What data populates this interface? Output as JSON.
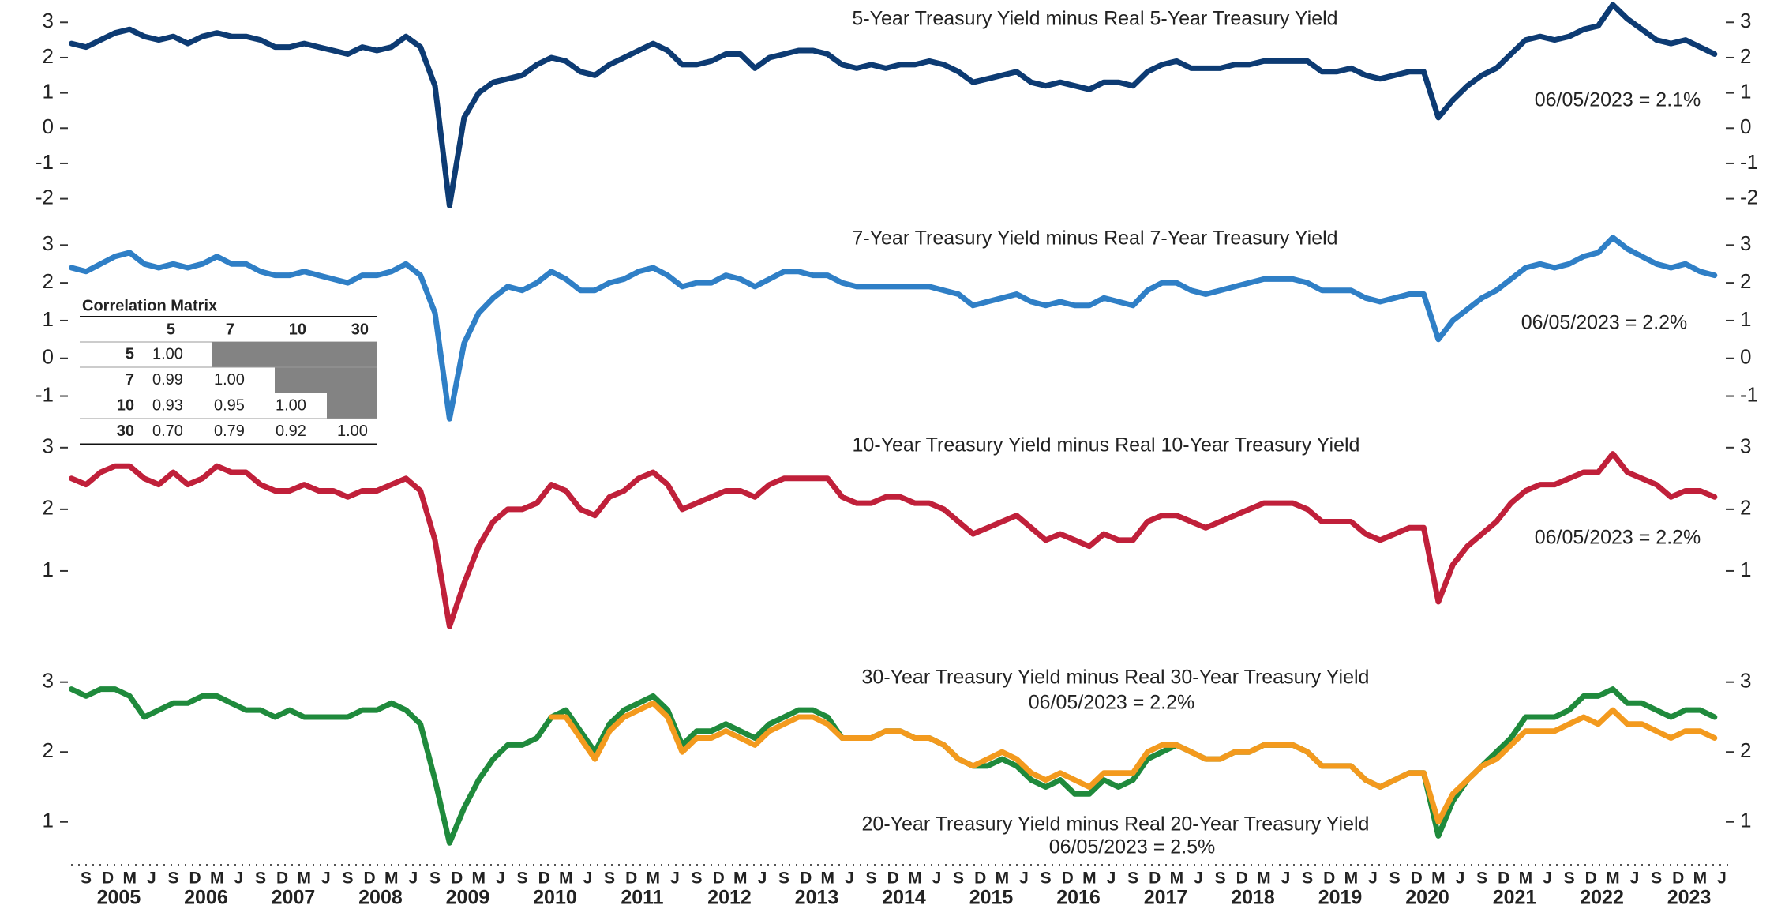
{
  "chart_data": [
    {
      "type": "line",
      "ylim": [
        -2.3,
        3.6
      ],
      "yticks": [
        -2,
        -1,
        0,
        1,
        2,
        3
      ],
      "series": [
        {
          "name": "5-Year Treasury Yield minus Real 5-Year Treasury Yield",
          "note": "06/05/2023 = 2.1%",
          "color": "#0d3b73",
          "values": [
            2.4,
            2.3,
            2.5,
            2.7,
            2.8,
            2.6,
            2.5,
            2.6,
            2.4,
            2.6,
            2.7,
            2.6,
            2.6,
            2.5,
            2.3,
            2.3,
            2.4,
            2.3,
            2.2,
            2.1,
            2.3,
            2.2,
            2.3,
            2.6,
            2.3,
            1.2,
            -2.2,
            0.3,
            1.0,
            1.3,
            1.4,
            1.5,
            1.8,
            2.0,
            1.9,
            1.6,
            1.5,
            1.8,
            2.0,
            2.2,
            2.4,
            2.2,
            1.8,
            1.8,
            1.9,
            2.1,
            2.1,
            1.7,
            2.0,
            2.1,
            2.2,
            2.2,
            2.1,
            1.8,
            1.7,
            1.8,
            1.7,
            1.8,
            1.8,
            1.9,
            1.8,
            1.6,
            1.3,
            1.4,
            1.5,
            1.6,
            1.3,
            1.2,
            1.3,
            1.2,
            1.1,
            1.3,
            1.3,
            1.2,
            1.6,
            1.8,
            1.9,
            1.7,
            1.7,
            1.7,
            1.8,
            1.8,
            1.9,
            1.9,
            1.9,
            1.9,
            1.6,
            1.6,
            1.7,
            1.5,
            1.4,
            1.5,
            1.6,
            1.6,
            0.3,
            0.8,
            1.2,
            1.5,
            1.7,
            2.1,
            2.5,
            2.6,
            2.5,
            2.6,
            2.8,
            2.9,
            3.5,
            3.1,
            2.8,
            2.5,
            2.4,
            2.5,
            2.3,
            2.1
          ]
        }
      ]
    },
    {
      "type": "line",
      "ylim": [
        -1.7,
        3.3
      ],
      "yticks": [
        -1,
        0,
        1,
        2,
        3
      ],
      "series": [
        {
          "name": "7-Year Treasury Yield minus Real 7-Year Treasury Yield",
          "note": "06/05/2023 = 2.2%",
          "note_color": "#222",
          "color": "#2f7fc6",
          "values": [
            2.4,
            2.3,
            2.5,
            2.7,
            2.8,
            2.5,
            2.4,
            2.5,
            2.4,
            2.5,
            2.7,
            2.5,
            2.5,
            2.3,
            2.2,
            2.2,
            2.3,
            2.2,
            2.1,
            2.0,
            2.2,
            2.2,
            2.3,
            2.5,
            2.2,
            1.2,
            -1.6,
            0.4,
            1.2,
            1.6,
            1.9,
            1.8,
            2.0,
            2.3,
            2.1,
            1.8,
            1.8,
            2.0,
            2.1,
            2.3,
            2.4,
            2.2,
            1.9,
            2.0,
            2.0,
            2.2,
            2.1,
            1.9,
            2.1,
            2.3,
            2.3,
            2.2,
            2.2,
            2.0,
            1.9,
            1.9,
            1.9,
            1.9,
            1.9,
            1.9,
            1.8,
            1.7,
            1.4,
            1.5,
            1.6,
            1.7,
            1.5,
            1.4,
            1.5,
            1.4,
            1.4,
            1.6,
            1.5,
            1.4,
            1.8,
            2.0,
            2.0,
            1.8,
            1.7,
            1.8,
            1.9,
            2.0,
            2.1,
            2.1,
            2.1,
            2.0,
            1.8,
            1.8,
            1.8,
            1.6,
            1.5,
            1.6,
            1.7,
            1.7,
            0.5,
            1.0,
            1.3,
            1.6,
            1.8,
            2.1,
            2.4,
            2.5,
            2.4,
            2.5,
            2.7,
            2.8,
            3.2,
            2.9,
            2.7,
            2.5,
            2.4,
            2.5,
            2.3,
            2.2
          ]
        }
      ]
    },
    {
      "type": "line",
      "ylim": [
        0,
        3.1
      ],
      "yticks": [
        1,
        2,
        3
      ],
      "series": [
        {
          "name": "10-Year Treasury Yield minus Real 10-Year Treasury Yield",
          "note": "06/05/2023 = 2.2%",
          "color": "#c0203a",
          "values": [
            2.5,
            2.4,
            2.6,
            2.7,
            2.7,
            2.5,
            2.4,
            2.6,
            2.4,
            2.5,
            2.7,
            2.6,
            2.6,
            2.4,
            2.3,
            2.3,
            2.4,
            2.3,
            2.3,
            2.2,
            2.3,
            2.3,
            2.4,
            2.5,
            2.3,
            1.5,
            0.1,
            0.8,
            1.4,
            1.8,
            2.0,
            2.0,
            2.1,
            2.4,
            2.3,
            2.0,
            1.9,
            2.2,
            2.3,
            2.5,
            2.6,
            2.4,
            2.0,
            2.1,
            2.2,
            2.3,
            2.3,
            2.2,
            2.4,
            2.5,
            2.5,
            2.5,
            2.5,
            2.2,
            2.1,
            2.1,
            2.2,
            2.2,
            2.1,
            2.1,
            2.0,
            1.8,
            1.6,
            1.7,
            1.8,
            1.9,
            1.7,
            1.5,
            1.6,
            1.5,
            1.4,
            1.6,
            1.5,
            1.5,
            1.8,
            1.9,
            1.9,
            1.8,
            1.7,
            1.8,
            1.9,
            2.0,
            2.1,
            2.1,
            2.1,
            2.0,
            1.8,
            1.8,
            1.8,
            1.6,
            1.5,
            1.6,
            1.7,
            1.7,
            0.5,
            1.1,
            1.4,
            1.6,
            1.8,
            2.1,
            2.3,
            2.4,
            2.4,
            2.5,
            2.6,
            2.6,
            2.9,
            2.6,
            2.5,
            2.4,
            2.2,
            2.3,
            2.3,
            2.2
          ]
        }
      ]
    },
    {
      "type": "line",
      "ylim": [
        0.5,
        3.2
      ],
      "yticks": [
        1,
        2,
        3
      ],
      "series": [
        {
          "name": "20-Year Treasury Yield minus Real 20-Year Treasury Yield",
          "note": "06/05/2023 = 2.5%",
          "color": "#1f8a3c",
          "values": [
            2.9,
            2.8,
            2.9,
            2.9,
            2.8,
            2.5,
            2.6,
            2.7,
            2.7,
            2.8,
            2.8,
            2.7,
            2.6,
            2.6,
            2.5,
            2.6,
            2.5,
            2.5,
            2.5,
            2.5,
            2.6,
            2.6,
            2.7,
            2.6,
            2.4,
            1.6,
            0.7,
            1.2,
            1.6,
            1.9,
            2.1,
            2.1,
            2.2,
            2.5,
            2.6,
            2.3,
            2.0,
            2.4,
            2.6,
            2.7,
            2.8,
            2.6,
            2.1,
            2.3,
            2.3,
            2.4,
            2.3,
            2.2,
            2.4,
            2.5,
            2.6,
            2.6,
            2.5,
            2.2,
            2.2,
            2.2,
            2.3,
            2.3,
            2.2,
            2.2,
            2.1,
            1.9,
            1.8,
            1.8,
            1.9,
            1.8,
            1.6,
            1.5,
            1.6,
            1.4,
            1.4,
            1.6,
            1.5,
            1.6,
            1.9,
            2.0,
            2.1,
            2.0,
            1.9,
            1.9,
            2.0,
            2.0,
            2.1,
            2.1,
            2.1,
            2.0,
            1.8,
            1.8,
            1.8,
            1.6,
            1.5,
            1.6,
            1.7,
            1.7,
            0.8,
            1.3,
            1.6,
            1.8,
            2.0,
            2.2,
            2.5,
            2.5,
            2.5,
            2.6,
            2.8,
            2.8,
            2.9,
            2.7,
            2.7,
            2.6,
            2.5,
            2.6,
            2.6,
            2.5
          ]
        },
        {
          "name": "30-Year Treasury Yield minus Real 30-Year Treasury Yield",
          "note": "06/05/2023 = 2.2%",
          "color": "#f39a1e",
          "values": [
            null,
            null,
            null,
            null,
            null,
            null,
            null,
            null,
            null,
            null,
            null,
            null,
            null,
            null,
            null,
            null,
            null,
            null,
            null,
            null,
            null,
            null,
            null,
            null,
            null,
            null,
            null,
            null,
            null,
            null,
            null,
            null,
            null,
            2.5,
            2.5,
            2.2,
            1.9,
            2.3,
            2.5,
            2.6,
            2.7,
            2.5,
            2.0,
            2.2,
            2.2,
            2.3,
            2.2,
            2.1,
            2.3,
            2.4,
            2.5,
            2.5,
            2.4,
            2.2,
            2.2,
            2.2,
            2.3,
            2.3,
            2.2,
            2.2,
            2.1,
            1.9,
            1.8,
            1.9,
            2.0,
            1.9,
            1.7,
            1.6,
            1.7,
            1.6,
            1.5,
            1.7,
            1.7,
            1.7,
            2.0,
            2.1,
            2.1,
            2.0,
            1.9,
            1.9,
            2.0,
            2.0,
            2.1,
            2.1,
            2.1,
            2.0,
            1.8,
            1.8,
            1.8,
            1.6,
            1.5,
            1.6,
            1.7,
            1.7,
            1.0,
            1.4,
            1.6,
            1.8,
            1.9,
            2.1,
            2.3,
            2.3,
            2.3,
            2.4,
            2.5,
            2.4,
            2.6,
            2.4,
            2.4,
            2.3,
            2.2,
            2.3,
            2.3,
            2.2
          ]
        }
      ],
      "xticks": [
        "S",
        "D",
        "M",
        "J",
        "S",
        "D",
        "M",
        "J",
        "S",
        "D",
        "M",
        "J",
        "S",
        "D",
        "M",
        "J",
        "S",
        "D",
        "M",
        "J",
        "S",
        "D",
        "M",
        "J",
        "S",
        "D",
        "M",
        "J",
        "S",
        "D",
        "M",
        "J",
        "S",
        "D",
        "M",
        "J",
        "S",
        "D",
        "M",
        "J",
        "S",
        "D",
        "M",
        "J",
        "S",
        "D",
        "M",
        "J",
        "S",
        "D",
        "M",
        "J",
        "S",
        "D",
        "M",
        "J",
        "S",
        "D",
        "M",
        "J",
        "S",
        "D",
        "M",
        "J",
        "S",
        "D",
        "M",
        "J",
        "S",
        "D",
        "M",
        "J",
        "S",
        "D",
        "M",
        "J"
      ],
      "year_labels": [
        "2005",
        "2006",
        "2007",
        "2008",
        "2009",
        "2010",
        "2011",
        "2012",
        "2013",
        "2014",
        "2015",
        "2016",
        "2017",
        "2018",
        "2019",
        "2020",
        "2021",
        "2022",
        "2023"
      ]
    }
  ],
  "correlation_matrix": {
    "title": "Correlation Matrix",
    "columns": [
      "5",
      "7",
      "10",
      "30"
    ],
    "rows": [
      {
        "label": "5",
        "values": [
          "1.00"
        ]
      },
      {
        "label": "7",
        "values": [
          "0.99",
          "1.00"
        ]
      },
      {
        "label": "10",
        "values": [
          "0.93",
          "0.95",
          "1.00"
        ]
      },
      {
        "label": "30",
        "values": [
          "0.70",
          "0.79",
          "0.92",
          "1.00"
        ]
      }
    ]
  }
}
